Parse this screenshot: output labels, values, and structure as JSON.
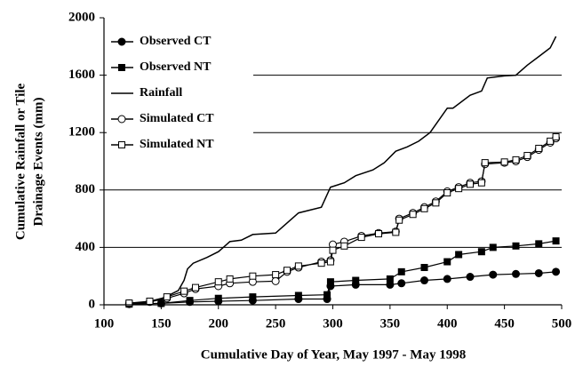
{
  "chart_data": {
    "type": "line",
    "xlabel": "Cumulative Day of Year, May 1997 - May 1998",
    "ylabel": [
      "Cumulative Rainfall or Tile",
      "Drainage Events (mm)"
    ],
    "xlim": [
      100,
      500
    ],
    "xticks": [
      100,
      150,
      200,
      250,
      300,
      350,
      400,
      450,
      500
    ],
    "ylim": [
      0,
      2000
    ],
    "yticks": [
      0,
      400,
      800,
      1200,
      1600,
      2000
    ],
    "grid": true,
    "legend": "upper left",
    "series": [
      {
        "name": "Observed CT",
        "color": "#000000",
        "marker": "circle",
        "marker_fill": "filled",
        "x": [
          122,
          150,
          175,
          200,
          230,
          270,
          295,
          298,
          320,
          350,
          360,
          380,
          400,
          420,
          440,
          460,
          480,
          495
        ],
        "values": [
          5,
          10,
          20,
          25,
          30,
          40,
          40,
          130,
          140,
          140,
          150,
          170,
          180,
          195,
          210,
          215,
          220,
          230
        ]
      },
      {
        "name": "Observed NT",
        "color": "#000000",
        "marker": "square",
        "marker_fill": "filled",
        "x": [
          122,
          150,
          175,
          200,
          230,
          270,
          295,
          298,
          320,
          350,
          360,
          380,
          400,
          410,
          430,
          440,
          460,
          480,
          495
        ],
        "values": [
          5,
          10,
          30,
          45,
          55,
          65,
          70,
          160,
          170,
          180,
          230,
          260,
          300,
          350,
          370,
          400,
          410,
          425,
          445
        ]
      },
      {
        "name": "Rainfall",
        "color": "#000000",
        "x": [
          122,
          135,
          150,
          165,
          170,
          173,
          178,
          190,
          200,
          210,
          220,
          230,
          250,
          270,
          290,
          298,
          310,
          320,
          335,
          345,
          355,
          365,
          375,
          385,
          400,
          405,
          420,
          430,
          435,
          450,
          460,
          470,
          480,
          490,
          495
        ],
        "values": [
          5,
          15,
          40,
          100,
          170,
          250,
          290,
          330,
          370,
          440,
          450,
          490,
          500,
          640,
          680,
          820,
          850,
          900,
          940,
          990,
          1070,
          1100,
          1140,
          1200,
          1370,
          1370,
          1460,
          1490,
          1580,
          1595,
          1600,
          1670,
          1730,
          1790,
          1870
        ]
      },
      {
        "name": "Simulated CT",
        "color": "#000000",
        "marker": "circle",
        "marker_fill": "open",
        "x": [
          122,
          140,
          155,
          170,
          180,
          200,
          210,
          230,
          250,
          260,
          270,
          290,
          298,
          300,
          310,
          325,
          340,
          355,
          358,
          370,
          380,
          390,
          400,
          410,
          420,
          430,
          433,
          450,
          460,
          470,
          480,
          490,
          495
        ],
        "values": [
          10,
          20,
          45,
          80,
          110,
          130,
          150,
          160,
          165,
          230,
          260,
          300,
          310,
          420,
          440,
          480,
          500,
          510,
          600,
          640,
          680,
          720,
          790,
          820,
          850,
          860,
          980,
          990,
          1000,
          1030,
          1080,
          1130,
          1160
        ]
      },
      {
        "name": "Simulated NT",
        "color": "#000000",
        "marker": "square",
        "marker_fill": "open",
        "x": [
          122,
          140,
          155,
          170,
          180,
          200,
          210,
          230,
          250,
          260,
          270,
          290,
          298,
          300,
          310,
          325,
          340,
          355,
          358,
          370,
          380,
          390,
          400,
          410,
          420,
          430,
          433,
          450,
          460,
          470,
          480,
          490,
          495
        ],
        "values": [
          12,
          25,
          55,
          95,
          120,
          160,
          180,
          200,
          210,
          240,
          270,
          290,
          300,
          380,
          410,
          470,
          495,
          505,
          590,
          630,
          670,
          710,
          780,
          810,
          840,
          850,
          990,
          995,
          1010,
          1040,
          1090,
          1140,
          1170
        ]
      }
    ]
  }
}
